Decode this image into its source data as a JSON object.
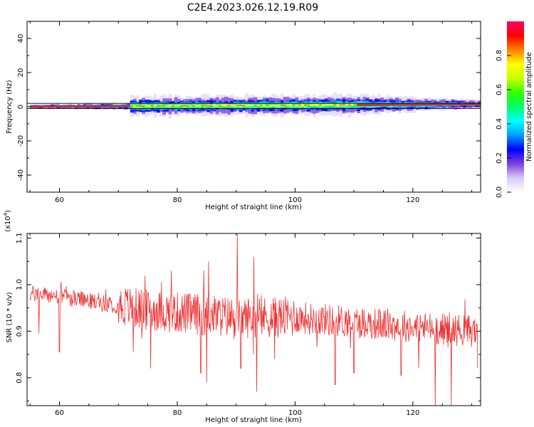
{
  "figure": {
    "title": "C2E4.2023.026.12.19.R09"
  },
  "colors": {
    "snr_line": "#ee3333",
    "signal_core": "#d42a1e",
    "baseline": "#000000"
  },
  "colorbar": {
    "label": "Normalized spectral amplitude",
    "ticks": [
      "0.0",
      "0.2",
      "0.4",
      "0.6",
      "0.8"
    ],
    "tick_values": [
      0.0,
      0.2,
      0.4,
      0.6,
      0.8
    ],
    "range": [
      0,
      1
    ],
    "colormap": [
      "#ffffff",
      "#d9c9f7",
      "#7f3fe0",
      "#0000ff",
      "#00a0ff",
      "#00ffff",
      "#00ff66",
      "#33ff00",
      "#ccff00",
      "#ffff00",
      "#ff8000",
      "#ff0000",
      "#ff0066"
    ]
  },
  "chart_data": [
    {
      "type": "heatmap",
      "xlabel": "Height of straight line (km)",
      "ylabel": "Frequency (Hz)",
      "xlim": [
        54.5,
        131.5
      ],
      "ylim": [
        -50,
        50
      ],
      "xticks": [
        60,
        80,
        100,
        120
      ],
      "xtick_labels": [
        "60",
        "80",
        "100",
        "120"
      ],
      "yticks": [
        -40,
        -20,
        0,
        20,
        40
      ],
      "ytick_labels": [
        "-40",
        "-20",
        "0",
        "20",
        "40"
      ],
      "reference_lines_hz": [
        2,
        -1
      ],
      "ridge": {
        "x_start": 55,
        "x_end": 131,
        "center_hz_start": 0,
        "center_hz_end": 1.5,
        "spread_start": 0.5,
        "spread_mid": 2.5,
        "spread_end": 1.0
      }
    },
    {
      "type": "line",
      "xlabel": "Height of straight line (km)",
      "ylabel": "SNR (10 * v/v)",
      "axis_multiplier": "(x10^4)",
      "xlim": [
        54.5,
        131.5
      ],
      "ylim": [
        0.74,
        1.11
      ],
      "xticks": [
        60,
        80,
        100,
        120
      ],
      "xtick_labels": [
        "60",
        "80",
        "100",
        "120"
      ],
      "yticks": [
        0.8,
        0.9,
        1.0,
        1.1
      ],
      "ytick_labels": [
        "0.8",
        "0.9",
        "1.0",
        "1.1"
      ],
      "trend": {
        "x": [
          55,
          60,
          65,
          70,
          75,
          80,
          85,
          90,
          95,
          100,
          105,
          110,
          115,
          120,
          125,
          131
        ],
        "y": [
          0.98,
          0.975,
          0.965,
          0.955,
          0.945,
          0.94,
          0.935,
          0.93,
          0.93,
          0.93,
          0.925,
          0.92,
          0.915,
          0.91,
          0.905,
          0.9
        ]
      },
      "spikes": [
        {
          "x": 56.5,
          "y": 0.895
        },
        {
          "x": 60.0,
          "y": 0.855
        },
        {
          "x": 72.5,
          "y": 0.855
        },
        {
          "x": 75.5,
          "y": 0.82
        },
        {
          "x": 84.0,
          "y": 0.81
        },
        {
          "x": 85.0,
          "y": 0.79
        },
        {
          "x": 90.2,
          "y": 1.11
        },
        {
          "x": 90.8,
          "y": 0.82
        },
        {
          "x": 93.0,
          "y": 0.8
        },
        {
          "x": 93.5,
          "y": 0.77
        },
        {
          "x": 96.5,
          "y": 0.84
        },
        {
          "x": 106.8,
          "y": 0.785
        },
        {
          "x": 110.0,
          "y": 0.81
        },
        {
          "x": 118.0,
          "y": 0.805
        },
        {
          "x": 121.0,
          "y": 0.82
        },
        {
          "x": 123.8,
          "y": 0.74
        },
        {
          "x": 126.5,
          "y": 0.74
        },
        {
          "x": 131.0,
          "y": 0.82
        }
      ],
      "peaks": [
        {
          "x": 79.0,
          "y": 1.03
        },
        {
          "x": 84.5,
          "y": 1.03
        },
        {
          "x": 85.3,
          "y": 1.05
        },
        {
          "x": 90.2,
          "y": 1.11
        },
        {
          "x": 93.0,
          "y": 1.06
        }
      ]
    }
  ]
}
